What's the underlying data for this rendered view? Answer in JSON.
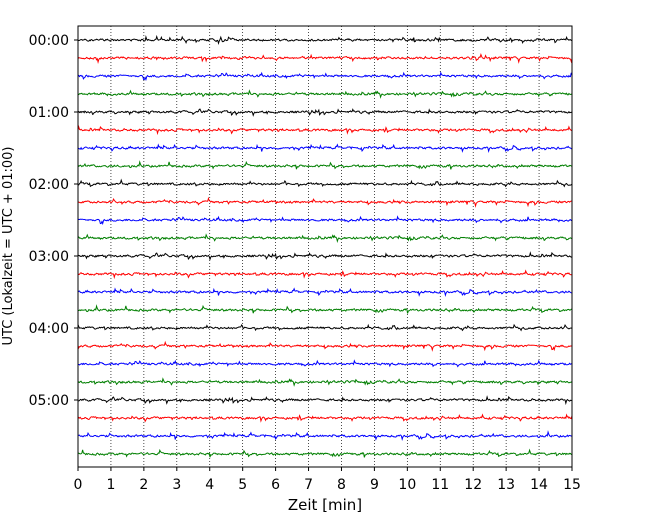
{
  "chart_data": {
    "type": "line",
    "subtype": "helicorder",
    "xlabel": "Zeit  [min]",
    "ylabel": "UTC (Lokalzeit = UTC + 01:00)",
    "xlim": [
      0,
      15
    ],
    "x_ticks": [
      0,
      1,
      2,
      3,
      4,
      5,
      6,
      7,
      8,
      9,
      10,
      11,
      12,
      13,
      14,
      15
    ],
    "y_tick_labels": [
      "00:00",
      "01:00",
      "02:00",
      "03:00",
      "04:00",
      "05:00"
    ],
    "rows_per_hour": 4,
    "row_count": 24,
    "row_minutes": 15,
    "trace_colors": [
      "#000000",
      "#ff0000",
      "#0000ff",
      "#007f00"
    ],
    "grid": "vertical dotted lines at each minute"
  }
}
